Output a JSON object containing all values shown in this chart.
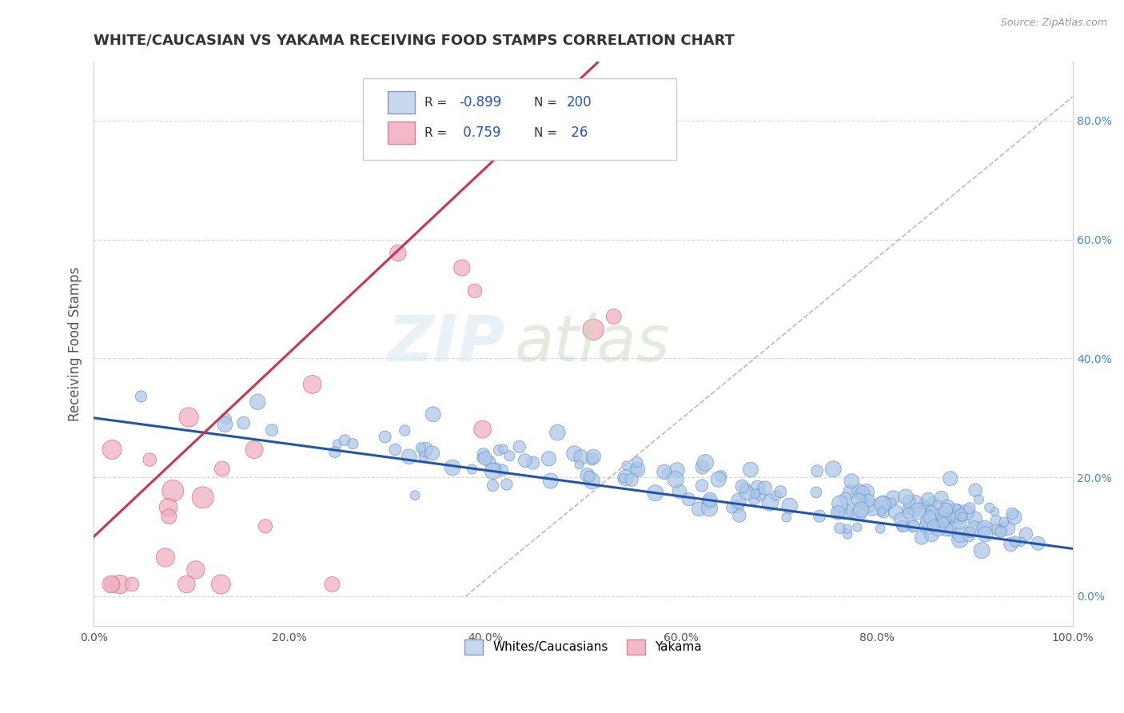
{
  "title": "WHITE/CAUCASIAN VS YAKAMA RECEIVING FOOD STAMPS CORRELATION CHART",
  "source": "Source: ZipAtlas.com",
  "ylabel": "Receiving Food Stamps",
  "xlabel": "",
  "xlim": [
    0,
    100
  ],
  "ylim": [
    -5,
    90
  ],
  "x_ticks": [
    0,
    20,
    40,
    60,
    80,
    100
  ],
  "x_tick_labels": [
    "0.0%",
    "20.0%",
    "40.0%",
    "60.0%",
    "80.0%",
    "100.0%"
  ],
  "y_ticks": [
    0,
    20,
    40,
    60,
    80
  ],
  "y_tick_labels_right": [
    "0.0%",
    "20.0%",
    "40.0%",
    "60.0%",
    "80.0%"
  ],
  "blue_R": -0.899,
  "blue_N": 200,
  "pink_R": 0.759,
  "pink_N": 26,
  "blue_color": "#aec8e8",
  "blue_edge_color": "#6090c8",
  "blue_line_color": "#2255aa",
  "pink_color": "#f0b0c0",
  "pink_edge_color": "#d06080",
  "pink_line_color": "#cc3355",
  "legend_blue_label": "Whites/Caucasians",
  "legend_pink_label": "Yakama",
  "watermark_zip": "ZIP",
  "watermark_atlas": "atlas",
  "background_color": "#ffffff",
  "grid_color": "#cccccc",
  "title_color": "#333333",
  "axis_color": "#555555",
  "right_tick_color": "#4488cc",
  "blue_seed": 42,
  "pink_seed": 123
}
